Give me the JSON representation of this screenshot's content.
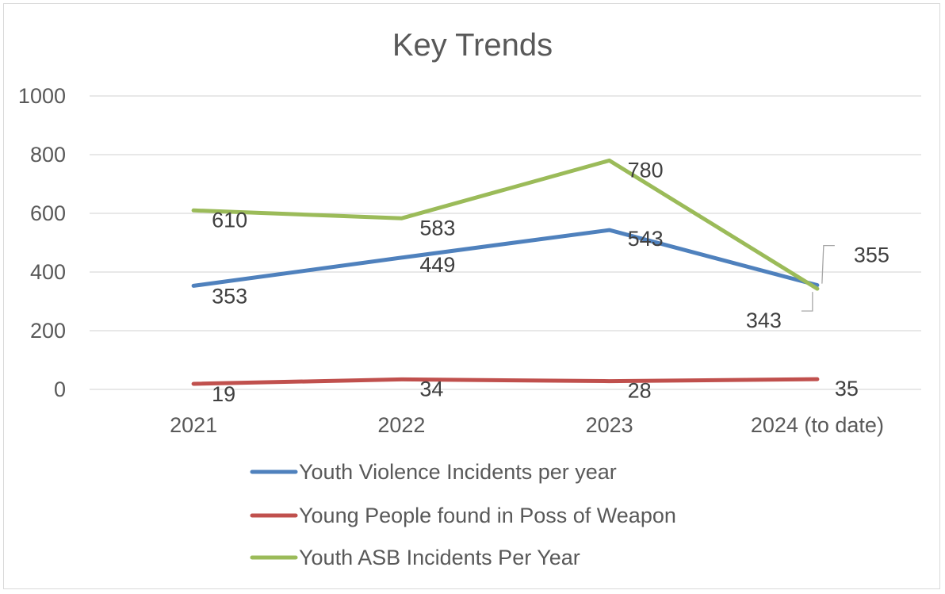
{
  "chart_data": {
    "type": "line",
    "title": "Key Trends",
    "xlabel": "",
    "ylabel": "",
    "categories": [
      "2021",
      "2022",
      "2023",
      "2024 (to date)"
    ],
    "ylim": [
      0,
      1000
    ],
    "yticks": [
      0,
      200,
      400,
      600,
      800,
      1000
    ],
    "grid": true,
    "legend_position": "bottom",
    "series": [
      {
        "name": "Youth Violence Incidents per year",
        "color": "#4f81bd",
        "values": [
          353,
          449,
          543,
          355
        ]
      },
      {
        "name": "Young People found in Poss of Weapon",
        "color": "#c0504d",
        "values": [
          19,
          34,
          28,
          35
        ]
      },
      {
        "name": "Youth ASB Incidents Per Year",
        "color": "#9bbb59",
        "values": [
          610,
          583,
          780,
          343
        ]
      }
    ]
  }
}
